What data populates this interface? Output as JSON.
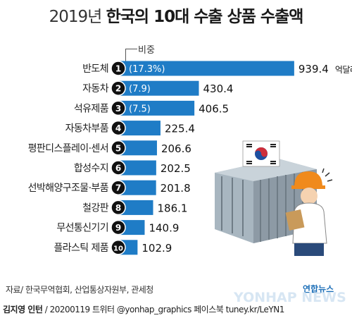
{
  "header": {
    "title_year": "2019년",
    "title_main": "한국의 10대 수출 상품 수출액"
  },
  "legend": {
    "share_label": "비중"
  },
  "chart_data": {
    "type": "bar",
    "orientation": "horizontal",
    "title": "2019년 한국의 10대 수출 상품 수출액",
    "unit": "억달러",
    "categories": [
      "반도체",
      "자동차",
      "석유제품",
      "자동차부품",
      "평판디스플레이·센서",
      "합성수지",
      "선박해양구조물·부품",
      "철강판",
      "무선통신기기",
      "플라스틱 제품"
    ],
    "ranks": [
      "1",
      "2",
      "3",
      "4",
      "5",
      "6",
      "7",
      "8",
      "9",
      "10"
    ],
    "values": [
      939.4,
      430.4,
      406.5,
      225.4,
      206.6,
      202.5,
      201.8,
      186.1,
      140.9,
      102.9
    ],
    "value_labels": [
      "939.4",
      "430.4",
      "406.5",
      "225.4",
      "206.6",
      "202.5",
      "201.8",
      "186.1",
      "140.9",
      "102.9"
    ],
    "share_labels": [
      "(17.3%)",
      "(7.9)",
      "(7.5)",
      "",
      "",
      "",
      "",
      "",
      "",
      ""
    ],
    "bar_color": "#1f7cc6",
    "rank_badge_color": "#111111"
  },
  "footer": {
    "source": "자료/ 한국무역협회, 산업통상자원부, 관세청",
    "author": "김지영 인턴",
    "credit_rest": " / 20200119 트위터 @yonhap_graphics  페이스북 tuney.kr/LeYN1"
  },
  "logo": {
    "korean": "연합뉴스",
    "english": "YONHAP NEWS"
  },
  "colors": {
    "accent": "#1f7cc6",
    "logo_blue": "#1d6fb8"
  }
}
